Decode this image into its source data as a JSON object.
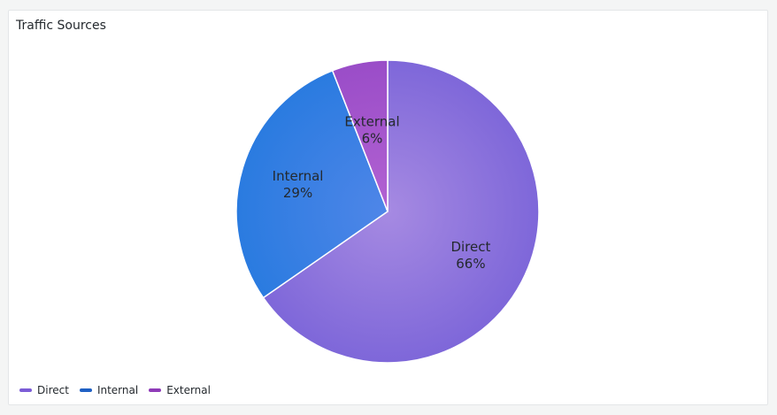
{
  "panel": {
    "title": "Traffic Sources"
  },
  "chart_data": {
    "type": "pie",
    "title": "Traffic Sources",
    "slices": [
      {
        "name": "Direct",
        "value": 66,
        "label": "Direct",
        "percent_label": "66%",
        "color": "#8a6fdc"
      },
      {
        "name": "Internal",
        "value": 29,
        "label": "Internal",
        "percent_label": "29%",
        "color": "#3a7fe0"
      },
      {
        "name": "External",
        "value": 6,
        "label": "External",
        "percent_label": "6%",
        "color": "#a052c9"
      }
    ],
    "legend_position": "bottom-left",
    "legend": [
      {
        "name": "Direct",
        "color": "#7b5cd6"
      },
      {
        "name": "Internal",
        "color": "#1f60c4"
      },
      {
        "name": "External",
        "color": "#8f3bb8"
      }
    ]
  }
}
